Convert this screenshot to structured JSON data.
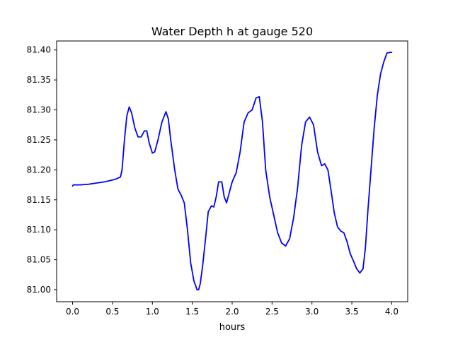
{
  "chart_data": {
    "type": "line",
    "title": "Water Depth h at gauge 520",
    "xlabel": "hours",
    "ylabel": "",
    "xlim": [
      -0.2,
      4.2
    ],
    "ylim": [
      80.98,
      81.415
    ],
    "xticks": [
      0.0,
      0.5,
      1.0,
      1.5,
      2.0,
      2.5,
      3.0,
      3.5,
      4.0
    ],
    "xtick_labels": [
      "0.0",
      "0.5",
      "1.0",
      "1.5",
      "2.0",
      "2.5",
      "3.0",
      "3.5",
      "4.0"
    ],
    "yticks": [
      81.0,
      81.05,
      81.1,
      81.15,
      81.2,
      81.25,
      81.3,
      81.35,
      81.4
    ],
    "ytick_labels": [
      "81.00",
      "81.05",
      "81.10",
      "81.15",
      "81.20",
      "81.25",
      "81.30",
      "81.35",
      "81.40"
    ],
    "grid": false,
    "legend": "none",
    "series": [
      {
        "color": "#0000ff",
        "x": [
          0.0,
          0.01,
          0.1,
          0.2,
          0.3,
          0.4,
          0.5,
          0.55,
          0.6,
          0.62,
          0.65,
          0.68,
          0.71,
          0.74,
          0.78,
          0.82,
          0.86,
          0.9,
          0.93,
          0.96,
          1.0,
          1.03,
          1.07,
          1.12,
          1.17,
          1.2,
          1.23,
          1.28,
          1.32,
          1.36,
          1.4,
          1.44,
          1.48,
          1.52,
          1.56,
          1.58,
          1.6,
          1.63,
          1.67,
          1.7,
          1.74,
          1.77,
          1.8,
          1.83,
          1.87,
          1.9,
          1.93,
          1.96,
          2.0,
          2.05,
          2.1,
          2.15,
          2.2,
          2.25,
          2.3,
          2.34,
          2.38,
          2.42,
          2.47,
          2.52,
          2.57,
          2.62,
          2.67,
          2.72,
          2.77,
          2.82,
          2.87,
          2.92,
          2.97,
          3.02,
          3.07,
          3.12,
          3.16,
          3.2,
          3.24,
          3.28,
          3.32,
          3.36,
          3.4,
          3.44,
          3.48,
          3.52,
          3.56,
          3.6,
          3.64,
          3.67,
          3.7,
          3.74,
          3.78,
          3.82,
          3.86,
          3.9,
          3.94,
          3.98,
          4.0
        ],
        "y": [
          81.173,
          81.175,
          81.175,
          81.176,
          81.178,
          81.18,
          81.183,
          81.185,
          81.188,
          81.2,
          81.25,
          81.29,
          81.305,
          81.295,
          81.27,
          81.255,
          81.255,
          81.265,
          81.265,
          81.245,
          81.228,
          81.23,
          81.25,
          81.28,
          81.297,
          81.285,
          81.25,
          81.2,
          81.168,
          81.158,
          81.145,
          81.1,
          81.045,
          81.015,
          81.0,
          81.0,
          81.01,
          81.04,
          81.09,
          81.13,
          81.14,
          81.138,
          81.155,
          81.18,
          81.18,
          81.155,
          81.145,
          81.16,
          81.18,
          81.195,
          81.23,
          81.28,
          81.295,
          81.3,
          81.32,
          81.322,
          81.28,
          81.2,
          81.155,
          81.125,
          81.095,
          81.078,
          81.073,
          81.085,
          81.12,
          81.17,
          81.24,
          81.28,
          81.288,
          81.275,
          81.23,
          81.207,
          81.21,
          81.2,
          81.165,
          81.128,
          81.105,
          81.098,
          81.095,
          81.08,
          81.06,
          81.048,
          81.035,
          81.028,
          81.035,
          81.07,
          81.13,
          81.2,
          81.27,
          81.325,
          81.36,
          81.38,
          81.395,
          81.396,
          81.396
        ]
      }
    ]
  }
}
